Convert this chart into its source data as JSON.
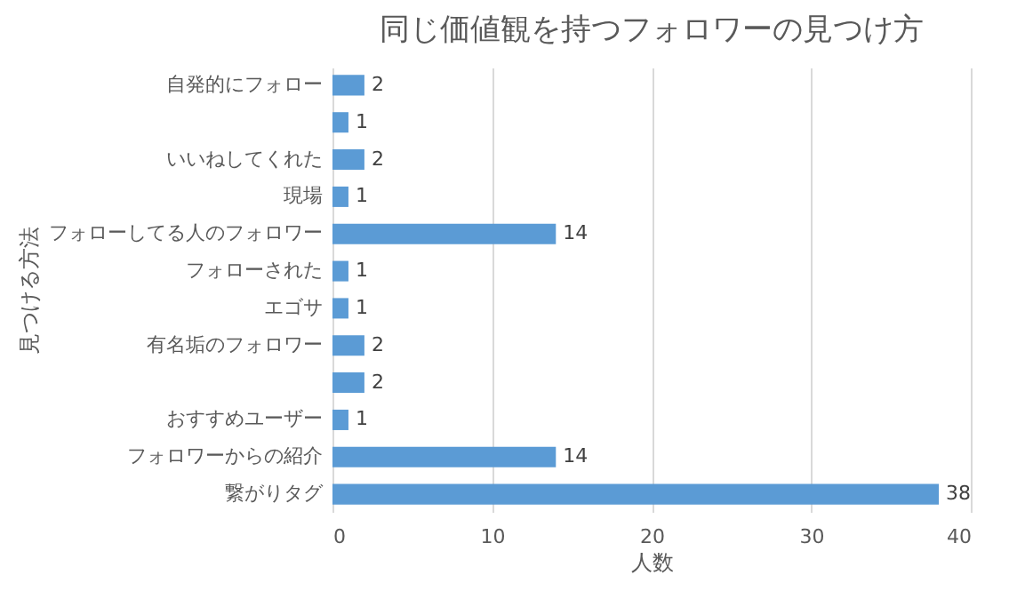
{
  "chart_data": {
    "type": "bar",
    "orientation": "horizontal",
    "title": "同じ価値観を持つフォロワーの見つけ方",
    "xlabel": "人数",
    "ylabel": "見つける方法",
    "categories": [
      "自発的にフォロー",
      null,
      "いいねしてくれた",
      "現場",
      "フォローしてる人のフォロワー",
      "フォローされた",
      "エゴサ",
      "有名垢のフォロワー",
      null,
      "おすすめユーザー",
      "フォロワーからの紹介",
      "繋がりタグ"
    ],
    "values": [
      2,
      1,
      2,
      1,
      14,
      1,
      1,
      2,
      2,
      1,
      14,
      38
    ],
    "color": "#5b9bd5",
    "xlim": [
      0,
      40
    ],
    "xticks": [
      0,
      10,
      20,
      30,
      40
    ],
    "grid": "x",
    "data_labels": true
  }
}
